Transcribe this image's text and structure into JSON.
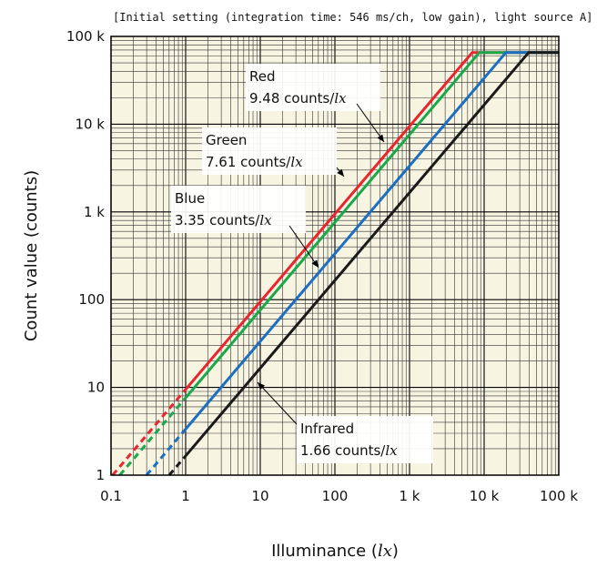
{
  "chart_data": {
    "type": "line",
    "title": "[Initial setting (integration time: 546 ms/ch, low gain), light source A]",
    "xlabel": "Illuminance",
    "xlabel_unit": "lx",
    "ylabel": "Count value (counts)",
    "x_scale": "log",
    "y_scale": "log",
    "xlim": [
      0.1,
      100000
    ],
    "ylim": [
      1,
      100000
    ],
    "x_ticks": [
      "0.1",
      "1",
      "10",
      "100",
      "1 k",
      "10 k",
      "100 k"
    ],
    "y_ticks": [
      "1",
      "10",
      "100",
      "1 k",
      "10 k",
      "100 k"
    ],
    "grid": true,
    "saturation_counts": 65535,
    "series": [
      {
        "name": "Red",
        "sensitivity": "9.48 counts/",
        "unit": "lx",
        "color": "#e8262d",
        "dashed": [
          [
            0.105,
            1
          ],
          [
            1,
            9.48
          ]
        ],
        "solid": [
          [
            1,
            9.48
          ],
          [
            6913,
            65535
          ],
          [
            100000,
            65535
          ]
        ]
      },
      {
        "name": "Green",
        "sensitivity": "7.61 counts/",
        "unit": "lx",
        "color": "#1aa84a",
        "dashed": [
          [
            0.131,
            1
          ],
          [
            1,
            7.61
          ]
        ],
        "solid": [
          [
            1,
            7.61
          ],
          [
            8612,
            65535
          ],
          [
            100000,
            65535
          ]
        ]
      },
      {
        "name": "Blue",
        "sensitivity": "3.35 counts/",
        "unit": "lx",
        "color": "#1b6fc0",
        "dashed": [
          [
            0.299,
            1
          ],
          [
            1,
            3.35
          ]
        ],
        "solid": [
          [
            1,
            3.35
          ],
          [
            19563,
            65535
          ],
          [
            100000,
            65535
          ]
        ]
      },
      {
        "name": "Infrared",
        "sensitivity": "1.66 counts/",
        "unit": "lx",
        "color": "#1a1a1a",
        "dashed": [
          [
            0.602,
            1
          ],
          [
            1,
            1.66
          ]
        ],
        "solid": [
          [
            1,
            1.66
          ],
          [
            39479,
            65535
          ],
          [
            100000,
            65535
          ]
        ]
      }
    ]
  }
}
